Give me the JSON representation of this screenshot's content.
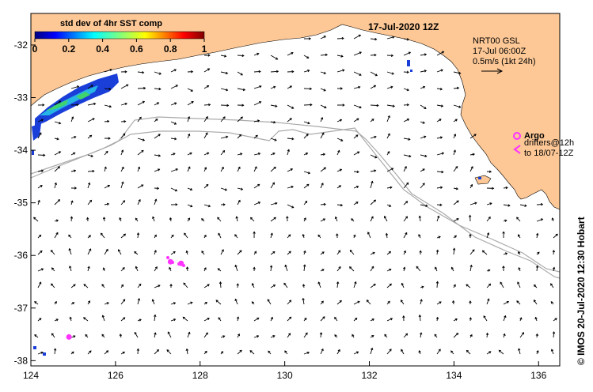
{
  "map": {
    "title": "17-Jul-2020 12Z",
    "product": {
      "name": "NRT00 GSL",
      "time": "17-Jul 06:00Z",
      "scale": "0.5m/s (1kt 24h)"
    },
    "colorbar": {
      "title": "std dev of 4hr SST comp",
      "ticks": [
        "0",
        "0.2",
        "0.4",
        "0.6",
        "0.8",
        "1"
      ],
      "colors": [
        "#00007f",
        "#0000ff",
        "#007fff",
        "#00ffff",
        "#7fff7f",
        "#ffff00",
        "#ff7f00",
        "#ff0000",
        "#7f0000"
      ]
    },
    "legend": {
      "argo_label": "Argo",
      "drifters_label": "drifters@12h",
      "drifters_sub": "to 18/07-12Z"
    },
    "credit": "© IMOS 20-Jul-2020 12:30 Hobart",
    "x_ticks": [
      "124",
      "126",
      "128",
      "130",
      "132",
      "134",
      "136"
    ],
    "y_ticks": [
      "-32",
      "-33",
      "-34",
      "-35",
      "-36",
      "-37",
      "-38"
    ],
    "colors": {
      "land": "#fdc896",
      "argo": "#ff33ff",
      "drifter": "#ff33ff",
      "contour": "#aaaaaa"
    }
  },
  "chart_data": {
    "type": "map",
    "extent": {
      "lon": [
        124,
        136.5
      ],
      "lat": [
        -38.1,
        -31.4
      ]
    },
    "argo_floats": [
      {
        "lon": 124.9,
        "lat": -37.55
      },
      {
        "lon": 127.3,
        "lat": -36.12
      },
      {
        "lon": 127.55,
        "lat": -36.15
      }
    ]
  }
}
